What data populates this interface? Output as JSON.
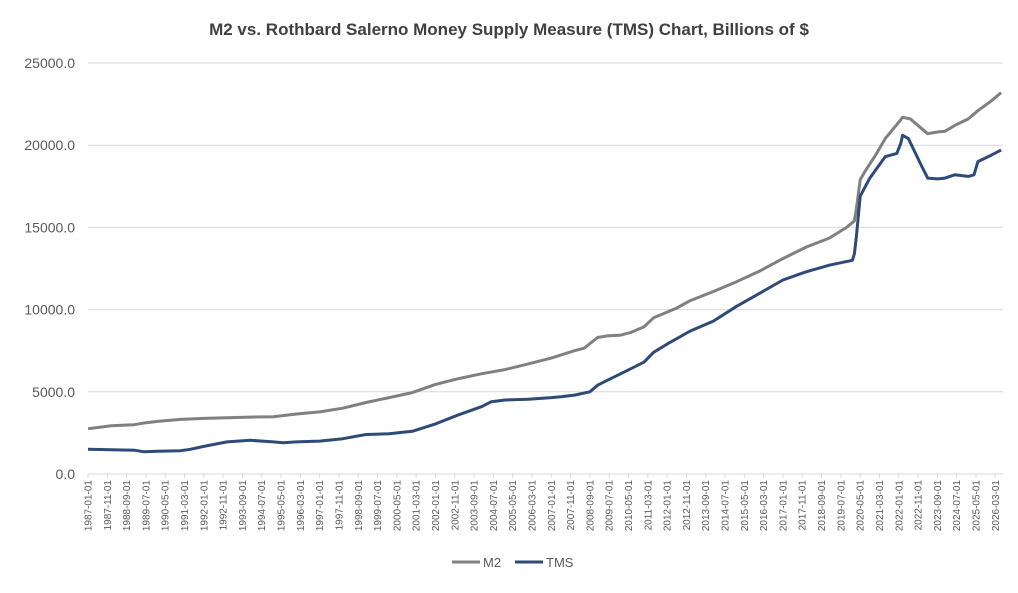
{
  "chart_data": {
    "type": "line",
    "title": "M2 vs. Rothbard Salerno Money Supply Measure (TMS) Chart, Billions of $",
    "xlabel": "",
    "ylabel": "",
    "ylim": [
      0,
      25000
    ],
    "y_ticks": [
      "0.0",
      "5000.0",
      "10000.0",
      "15000.0",
      "20000.0",
      "25000.0"
    ],
    "x_range": [
      "1987-01",
      "2026-07"
    ],
    "x_ticks": [
      "1987-01-01",
      "1987-11-01",
      "1988-09-01",
      "1989-07-01",
      "1990-05-01",
      "1991-03-01",
      "1992-01-01",
      "1992-11-01",
      "1993-09-01",
      "1994-07-01",
      "1995-05-01",
      "1996-03-01",
      "1997-01-01",
      "1997-11-01",
      "1998-09-01",
      "1999-07-01",
      "2000-05-01",
      "2001-03-01",
      "2002-01-01",
      "2002-11-01",
      "2003-09-01",
      "2004-07-01",
      "2005-05-01",
      "2006-03-01",
      "2007-01-01",
      "2007-11-01",
      "2008-09-01",
      "2009-07-01",
      "2010-05-01",
      "2011-03-01",
      "2012-01-01",
      "2012-11-01",
      "2013-09-01",
      "2014-07-01",
      "2015-05-01",
      "2016-03-01",
      "2017-01-01",
      "2017-11-01",
      "2018-09-01",
      "2019-07-01",
      "2020-05-01",
      "2021-03-01",
      "2022-01-01",
      "2022-11-01",
      "2023-09-01",
      "2024-07-01",
      "2025-05-01",
      "2026-03-01"
    ],
    "grid": true,
    "legend_position": "bottom",
    "series": [
      {
        "name": "M2",
        "color": "#808080",
        "points": [
          [
            "1987-01",
            2750
          ],
          [
            "1988-01",
            2930
          ],
          [
            "1989-01",
            3000
          ],
          [
            "1989-06",
            3100
          ],
          [
            "1990-01",
            3200
          ],
          [
            "1991-01",
            3320
          ],
          [
            "1992-01",
            3380
          ],
          [
            "1993-01",
            3420
          ],
          [
            "1994-01",
            3460
          ],
          [
            "1995-01",
            3480
          ],
          [
            "1996-01",
            3650
          ],
          [
            "1997-01",
            3780
          ],
          [
            "1998-01",
            4000
          ],
          [
            "1999-01",
            4350
          ],
          [
            "2000-01",
            4650
          ],
          [
            "2001-01",
            4950
          ],
          [
            "2002-01",
            5450
          ],
          [
            "2003-01",
            5800
          ],
          [
            "2004-01",
            6100
          ],
          [
            "2005-01",
            6350
          ],
          [
            "2006-01",
            6700
          ],
          [
            "2007-01",
            7050
          ],
          [
            "2008-01",
            7500
          ],
          [
            "2008-06",
            7650
          ],
          [
            "2009-01",
            8300
          ],
          [
            "2009-06",
            8400
          ],
          [
            "2010-01",
            8450
          ],
          [
            "2010-06",
            8600
          ],
          [
            "2011-01",
            8950
          ],
          [
            "2011-06",
            9500
          ],
          [
            "2012-01",
            9850
          ],
          [
            "2012-06",
            10100
          ],
          [
            "2013-01",
            10550
          ],
          [
            "2014-01",
            11100
          ],
          [
            "2015-01",
            11700
          ],
          [
            "2016-01",
            12350
          ],
          [
            "2017-01",
            13100
          ],
          [
            "2018-01",
            13800
          ],
          [
            "2019-01",
            14350
          ],
          [
            "2019-10",
            15000
          ],
          [
            "2020-02",
            15400
          ],
          [
            "2020-03",
            16100
          ],
          [
            "2020-05",
            17900
          ],
          [
            "2020-08",
            18500
          ],
          [
            "2021-01",
            19400
          ],
          [
            "2021-06",
            20400
          ],
          [
            "2022-01",
            21400
          ],
          [
            "2022-03",
            21700
          ],
          [
            "2022-07",
            21600
          ],
          [
            "2023-01",
            21000
          ],
          [
            "2023-04",
            20700
          ],
          [
            "2023-09",
            20800
          ],
          [
            "2024-01",
            20850
          ],
          [
            "2024-06",
            21200
          ],
          [
            "2025-01",
            21600
          ],
          [
            "2025-06",
            22100
          ],
          [
            "2026-01",
            22700
          ],
          [
            "2026-06",
            23200
          ]
        ]
      },
      {
        "name": "TMS",
        "color": "#2e4a76",
        "points": [
          [
            "1987-01",
            1500
          ],
          [
            "1988-01",
            1480
          ],
          [
            "1989-01",
            1450
          ],
          [
            "1989-06",
            1350
          ],
          [
            "1990-01",
            1380
          ],
          [
            "1991-01",
            1420
          ],
          [
            "1991-06",
            1500
          ],
          [
            "1992-01",
            1680
          ],
          [
            "1993-01",
            1950
          ],
          [
            "1994-01",
            2050
          ],
          [
            "1995-01",
            1950
          ],
          [
            "1995-06",
            1900
          ],
          [
            "1996-01",
            1950
          ],
          [
            "1997-01",
            2000
          ],
          [
            "1998-01",
            2150
          ],
          [
            "1999-01",
            2400
          ],
          [
            "2000-01",
            2450
          ],
          [
            "2001-01",
            2600
          ],
          [
            "2002-01",
            3050
          ],
          [
            "2003-01",
            3600
          ],
          [
            "2004-01",
            4100
          ],
          [
            "2004-06",
            4400
          ],
          [
            "2005-01",
            4500
          ],
          [
            "2006-01",
            4550
          ],
          [
            "2007-01",
            4650
          ],
          [
            "2007-06",
            4700
          ],
          [
            "2008-01",
            4800
          ],
          [
            "2008-09",
            5000
          ],
          [
            "2009-01",
            5400
          ],
          [
            "2009-06",
            5700
          ],
          [
            "2010-01",
            6100
          ],
          [
            "2011-01",
            6800
          ],
          [
            "2011-06",
            7400
          ],
          [
            "2012-01",
            7900
          ],
          [
            "2013-01",
            8700
          ],
          [
            "2014-01",
            9300
          ],
          [
            "2015-01",
            10200
          ],
          [
            "2016-01",
            11000
          ],
          [
            "2017-01",
            11800
          ],
          [
            "2018-01",
            12300
          ],
          [
            "2019-01",
            12700
          ],
          [
            "2020-01",
            13000
          ],
          [
            "2020-02",
            13400
          ],
          [
            "2020-03",
            14400
          ],
          [
            "2020-05",
            16900
          ],
          [
            "2020-10",
            18000
          ],
          [
            "2021-06",
            19300
          ],
          [
            "2021-12",
            19500
          ],
          [
            "2022-02",
            20100
          ],
          [
            "2022-03",
            20600
          ],
          [
            "2022-06",
            20400
          ],
          [
            "2023-01",
            18700
          ],
          [
            "2023-04",
            18000
          ],
          [
            "2023-09",
            17950
          ],
          [
            "2024-01",
            18000
          ],
          [
            "2024-06",
            18200
          ],
          [
            "2025-01",
            18100
          ],
          [
            "2025-04",
            18200
          ],
          [
            "2025-06",
            19000
          ],
          [
            "2026-01",
            19400
          ],
          [
            "2026-06",
            19700
          ]
        ]
      }
    ]
  }
}
